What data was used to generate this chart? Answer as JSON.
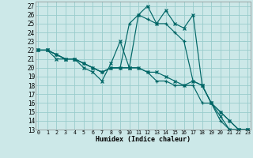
{
  "xlabel": "Humidex (Indice chaleur)",
  "bg_color": "#cce8e8",
  "grid_color": "#99cccc",
  "line_color": "#006666",
  "xlim": [
    -0.3,
    23.3
  ],
  "ylim": [
    13,
    27.5
  ],
  "xticks": [
    0,
    1,
    2,
    3,
    4,
    5,
    6,
    7,
    8,
    9,
    10,
    11,
    12,
    13,
    14,
    15,
    16,
    17,
    18,
    19,
    20,
    21,
    22,
    23
  ],
  "yticks": [
    13,
    14,
    15,
    16,
    17,
    18,
    19,
    20,
    21,
    22,
    23,
    24,
    25,
    26,
    27
  ],
  "series": [
    {
      "x": [
        0,
        1,
        2,
        3,
        4,
        5,
        6,
        7,
        8,
        9,
        10,
        11,
        12,
        13,
        14,
        15,
        16,
        17,
        18,
        19,
        20,
        21,
        22,
        23
      ],
      "y": [
        22,
        22,
        21,
        21,
        21,
        20,
        19.5,
        18.5,
        20.5,
        23,
        20,
        26,
        27,
        25,
        26.5,
        25,
        24.5,
        26,
        18,
        16,
        14.5,
        13,
        13,
        13
      ],
      "marker": "x"
    },
    {
      "x": [
        0,
        1,
        2,
        3,
        4,
        5,
        6,
        7,
        8,
        9,
        10,
        11,
        12,
        13,
        14,
        15,
        16,
        17,
        18,
        19,
        20,
        21,
        22,
        23
      ],
      "y": [
        22,
        22,
        21.5,
        21,
        21,
        20.5,
        20,
        19.5,
        20,
        20,
        25,
        26,
        25.5,
        25,
        25,
        24,
        23,
        18.5,
        18,
        16,
        14,
        13,
        13,
        13
      ],
      "marker": "+"
    },
    {
      "x": [
        0,
        1,
        2,
        3,
        4,
        5,
        6,
        7,
        8,
        9,
        10,
        11,
        12,
        13,
        14,
        15,
        16,
        17,
        18,
        19,
        20,
        21,
        22,
        23
      ],
      "y": [
        22,
        22,
        21.5,
        21,
        21,
        20.5,
        20,
        19.5,
        20,
        20,
        20,
        20,
        19.5,
        19.5,
        19,
        18.5,
        18,
        18.5,
        18,
        16,
        15,
        14,
        13,
        13
      ],
      "marker": "x"
    },
    {
      "x": [
        0,
        1,
        2,
        3,
        4,
        5,
        6,
        7,
        8,
        9,
        10,
        11,
        12,
        13,
        14,
        15,
        16,
        17,
        18,
        19,
        20,
        21,
        22,
        23
      ],
      "y": [
        22,
        22,
        21.5,
        21,
        21,
        20.5,
        20,
        19.5,
        20,
        20,
        20,
        20,
        19.5,
        18.5,
        18.5,
        18,
        18,
        18,
        16,
        16,
        15,
        14,
        13,
        13
      ],
      "marker": "+"
    }
  ]
}
